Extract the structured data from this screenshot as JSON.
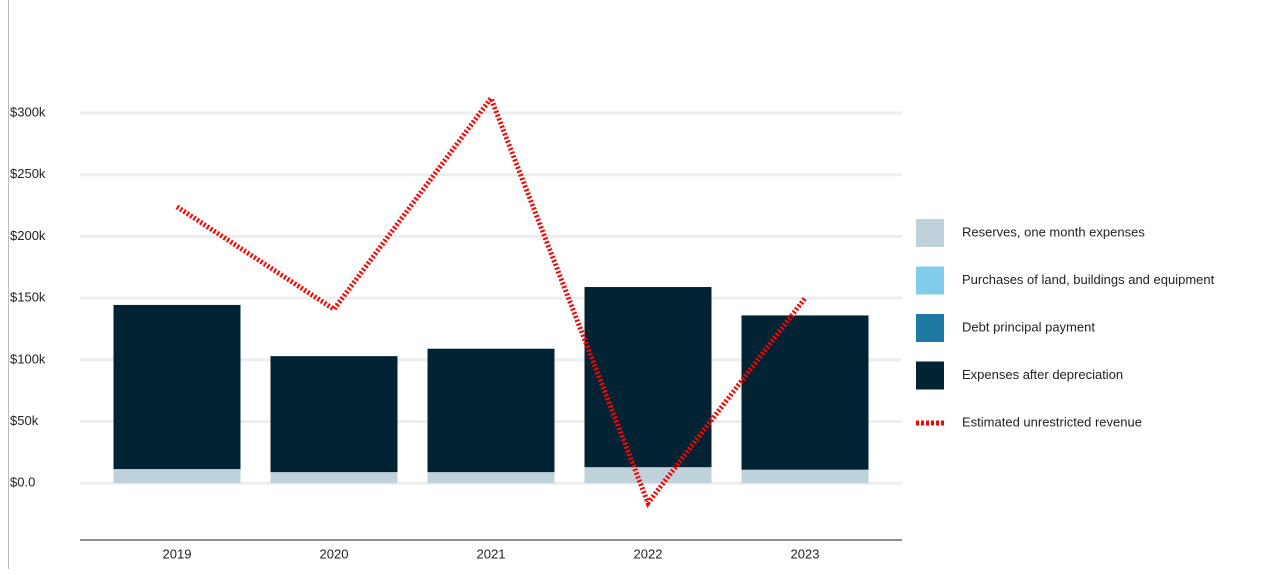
{
  "chart_data": {
    "type": "bar",
    "categories": [
      "2019",
      "2020",
      "2021",
      "2022",
      "2023"
    ],
    "series": [
      {
        "name": "Reserves, one month expenses",
        "color": "#bfd2db",
        "values": [
          11500,
          9000,
          9000,
          13000,
          11000
        ]
      },
      {
        "name": "Purchases of land, buildings and equipment",
        "color": "#7fcdea",
        "values": [
          0,
          0,
          0,
          0,
          0
        ]
      },
      {
        "name": "Debt principal payment",
        "color": "#1f7aa3",
        "values": [
          0,
          0,
          0,
          0,
          0
        ]
      },
      {
        "name": "Expenses after depreciation",
        "color": "#012333",
        "values": [
          133000,
          94000,
          100000,
          146000,
          125000
        ]
      },
      {
        "name": "Estimated unrestricted revenue",
        "type": "line",
        "color": "#ff0000",
        "values": [
          224000,
          141000,
          312000,
          -16000,
          150000
        ]
      }
    ],
    "stacked": true,
    "ylim": [
      -46000,
      343000
    ],
    "yticks": [
      {
        "value": 0,
        "label": "$0.0"
      },
      {
        "value": 50000,
        "label": "$50k"
      },
      {
        "value": 100000,
        "label": "$100k"
      },
      {
        "value": 150000,
        "label": "$150k"
      },
      {
        "value": 200000,
        "label": "$200k"
      },
      {
        "value": 250000,
        "label": "$250k"
      },
      {
        "value": 300000,
        "label": "$300k"
      }
    ],
    "grid": true,
    "legend": "right"
  }
}
